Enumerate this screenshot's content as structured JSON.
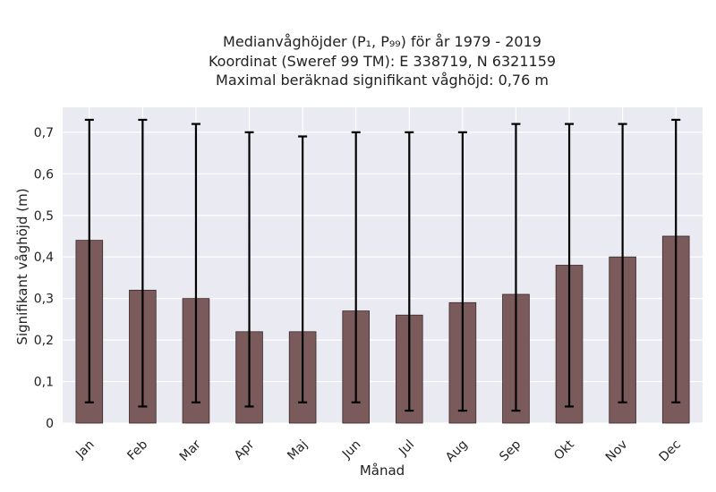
{
  "chart_data": {
    "type": "bar",
    "title": "Medianvåghöjder (P₁, P₉₉) för år 1979 - 2019",
    "subtitle_lines": [
      "Koordinat (Sweref 99 TM): E 338719, N 6321159",
      "Maximal beräknad signifikant våghöjd: 0,76 m"
    ],
    "xlabel": "Månad",
    "ylabel": "Signifikant våghöjd (m)",
    "categories": [
      "Jan",
      "Feb",
      "Mar",
      "Apr",
      "Maj",
      "Jun",
      "Jul",
      "Aug",
      "Sep",
      "Okt",
      "Nov",
      "Dec"
    ],
    "series": [
      {
        "values": [
          0.44,
          0.32,
          0.3,
          0.22,
          0.22,
          0.27,
          0.26,
          0.29,
          0.31,
          0.38,
          0.4,
          0.45
        ],
        "error_low": [
          0.05,
          0.04,
          0.05,
          0.04,
          0.05,
          0.05,
          0.03,
          0.03,
          0.03,
          0.04,
          0.05,
          0.05
        ],
        "error_high": [
          0.73,
          0.73,
          0.72,
          0.7,
          0.69,
          0.7,
          0.7,
          0.7,
          0.72,
          0.72,
          0.72,
          0.73
        ]
      }
    ],
    "ylim": [
      0,
      0.76
    ],
    "yticks": [
      0,
      0.1,
      0.2,
      0.3,
      0.4,
      0.5,
      0.6,
      0.7
    ],
    "ytick_labels": [
      "0",
      "0,1",
      "0,2",
      "0,3",
      "0,4",
      "0,5",
      "0,6",
      "0,7"
    ],
    "grid": true,
    "colors": {
      "bar_fill": "#7a5a5a",
      "bar_edge": "#3a2a2a",
      "error_bar": "#000000",
      "plot_background": "#eaeaf2",
      "grid": "#ffffff"
    }
  }
}
